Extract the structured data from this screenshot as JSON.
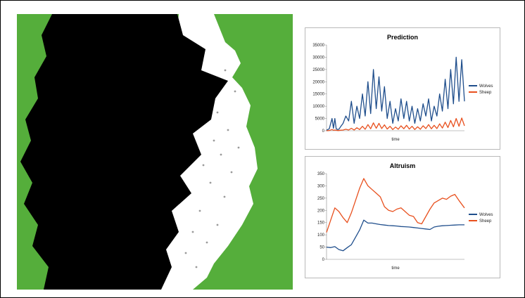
{
  "simulation": {
    "colors": {
      "grass": "#55ae3b",
      "wolves": "#000000",
      "sheep": "#ffffff"
    },
    "description_free": true
  },
  "chart_data": [
    {
      "type": "line",
      "title": "Prediction",
      "xlabel": "time",
      "ylabel": "",
      "ylim": [
        0,
        35000
      ],
      "yticks": [
        "0",
        "5000",
        "10000",
        "15000",
        "20000",
        "25000",
        "30000",
        "35000"
      ],
      "grid": false,
      "legend_position": "right",
      "x": [
        0,
        2,
        4,
        5,
        6,
        7,
        8,
        9,
        10,
        12,
        14,
        16,
        18,
        20,
        22,
        24,
        26,
        28,
        30,
        32,
        34,
        36,
        38,
        40,
        42,
        44,
        46,
        48,
        50,
        52,
        54,
        56,
        58,
        60,
        62,
        64,
        66,
        68,
        70,
        72,
        74,
        76,
        78,
        80,
        82,
        84,
        86,
        88,
        90,
        92,
        94,
        96,
        98,
        100
      ],
      "series": [
        {
          "name": "Wolves",
          "color": "#1f4e8c",
          "values": [
            200,
            800,
            5000,
            1000,
            5000,
            800,
            500,
            600,
            1500,
            3000,
            6000,
            4000,
            12000,
            3000,
            10000,
            5000,
            15000,
            6000,
            20000,
            7000,
            25000,
            9000,
            22000,
            8000,
            18000,
            5000,
            12000,
            3000,
            9000,
            4000,
            13000,
            5000,
            12000,
            4000,
            10000,
            3000,
            9000,
            4000,
            11000,
            6000,
            13000,
            4000,
            10000,
            6000,
            15000,
            8000,
            21000,
            9000,
            25000,
            11000,
            30000,
            12000,
            29000,
            12000
          ]
        },
        {
          "name": "Sheep",
          "color": "#e8501e",
          "values": [
            0,
            100,
            500,
            200,
            300,
            200,
            100,
            100,
            200,
            300,
            600,
            300,
            1000,
            300,
            1200,
            500,
            1800,
            600,
            2500,
            800,
            3200,
            1000,
            3000,
            900,
            2400,
            700,
            1800,
            500,
            1500,
            600,
            2000,
            800,
            2200,
            700,
            1800,
            500,
            1600,
            600,
            2000,
            900,
            2500,
            800,
            2200,
            900,
            2800,
            1100,
            3500,
            1300,
            4200,
            1600,
            5000,
            1800,
            5200,
            2000
          ]
        }
      ]
    },
    {
      "type": "line",
      "title": "Altruism",
      "xlabel": "time",
      "ylabel": "",
      "ylim": [
        0,
        350
      ],
      "yticks": [
        "0",
        "50",
        "100",
        "150",
        "200",
        "250",
        "300",
        "350"
      ],
      "grid": false,
      "legend_position": "right",
      "x": [
        0,
        3,
        6,
        9,
        12,
        15,
        18,
        21,
        24,
        27,
        30,
        33,
        36,
        39,
        42,
        45,
        48,
        51,
        54,
        57,
        60,
        63,
        66,
        69,
        72,
        75,
        78,
        81,
        84,
        87,
        90,
        93,
        96,
        100
      ],
      "series": [
        {
          "name": "Wolves",
          "color": "#1f4e8c",
          "values": [
            50,
            48,
            52,
            40,
            35,
            48,
            60,
            90,
            120,
            160,
            148,
            148,
            145,
            142,
            140,
            138,
            137,
            136,
            134,
            133,
            132,
            130,
            128,
            126,
            124,
            122,
            132,
            135,
            137,
            138,
            139,
            140,
            141,
            141
          ]
        },
        {
          "name": "Sheep",
          "color": "#e8501e",
          "values": [
            110,
            160,
            210,
            195,
            170,
            150,
            190,
            240,
            290,
            330,
            300,
            285,
            270,
            255,
            215,
            200,
            195,
            205,
            210,
            195,
            180,
            175,
            150,
            145,
            175,
            205,
            230,
            240,
            250,
            245,
            258,
            265,
            240,
            210
          ]
        }
      ]
    }
  ]
}
